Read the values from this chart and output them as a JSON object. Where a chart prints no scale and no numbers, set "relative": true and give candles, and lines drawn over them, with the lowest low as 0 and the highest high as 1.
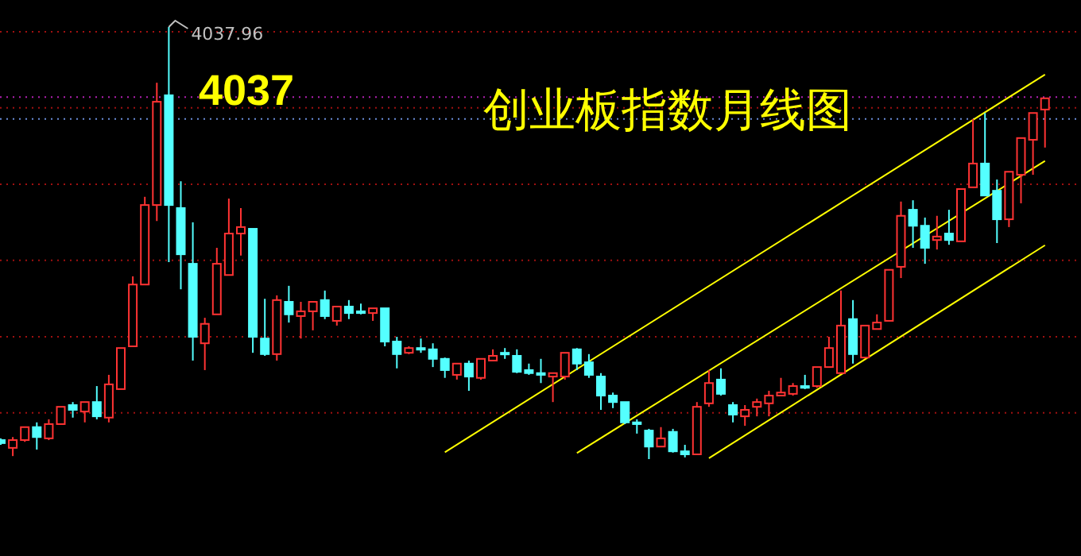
{
  "chart_data": {
    "type": "candlestick",
    "title": "创业板指数月线图",
    "relative": true,
    "categories": [
      null,
      null,
      null,
      null,
      null,
      null,
      null,
      null,
      null,
      null,
      null,
      null,
      null,
      null,
      null,
      null,
      null,
      null,
      null,
      null,
      null,
      null,
      null,
      null,
      null,
      null,
      null,
      null,
      null,
      null,
      null,
      null,
      null,
      null,
      null,
      null,
      null,
      null,
      null,
      null,
      null,
      null,
      null,
      null,
      null,
      null,
      null,
      null,
      null,
      null,
      null,
      null,
      null,
      null,
      null,
      null,
      null,
      null,
      null,
      null,
      null,
      null,
      null,
      null,
      null,
      null,
      null,
      null,
      null,
      null,
      null,
      null,
      null,
      null,
      null,
      null,
      null,
      null,
      null,
      null,
      null,
      null,
      null,
      null,
      null,
      null,
      null,
      null
    ],
    "ohlc": [
      [
        0.044,
        0.048,
        0.033,
        0.037
      ],
      [
        0.026,
        0.051,
        0.007,
        0.044
      ],
      [
        0.044,
        0.074,
        0.04,
        0.074
      ],
      [
        0.074,
        0.085,
        0.022,
        0.051
      ],
      [
        0.048,
        0.092,
        0.044,
        0.081
      ],
      [
        0.081,
        0.121,
        0.081,
        0.121
      ],
      [
        0.125,
        0.132,
        0.096,
        0.114
      ],
      [
        0.11,
        0.132,
        0.085,
        0.132
      ],
      [
        0.132,
        0.169,
        0.092,
        0.099
      ],
      [
        0.096,
        0.195,
        0.085,
        0.173
      ],
      [
        0.162,
        0.257,
        0.162,
        0.257
      ],
      [
        0.261,
        0.423,
        0.261,
        0.404
      ],
      [
        0.404,
        0.607,
        0.404,
        0.588
      ],
      [
        0.588,
        0.871,
        0.551,
        0.827
      ],
      [
        0.842,
        1,
        0.456,
        0.588
      ],
      [
        0.581,
        0.643,
        0.393,
        0.474
      ],
      [
        0.452,
        0.548,
        0.228,
        0.283
      ],
      [
        0.268,
        0.327,
        0.206,
        0.313
      ],
      [
        0.335,
        0.489,
        0.335,
        0.452
      ],
      [
        0.426,
        0.603,
        0.426,
        0.522
      ],
      [
        0.522,
        0.581,
        0.471,
        0.537
      ],
      [
        0.533,
        0.533,
        0.246,
        0.283
      ],
      [
        0.279,
        0.371,
        0.239,
        0.243
      ],
      [
        0.243,
        0.379,
        0.228,
        0.368
      ],
      [
        0.364,
        0.401,
        0.316,
        0.335
      ],
      [
        0.331,
        0.364,
        0.279,
        0.342
      ],
      [
        0.342,
        0.364,
        0.298,
        0.364
      ],
      [
        0.368,
        0.39,
        0.324,
        0.331
      ],
      [
        0.32,
        0.353,
        0.309,
        0.353
      ],
      [
        0.353,
        0.368,
        0.324,
        0.338
      ],
      [
        0.342,
        0.36,
        0.335,
        0.338
      ],
      [
        0.338,
        0.349,
        0.32,
        0.349
      ],
      [
        0.349,
        0.349,
        0.261,
        0.272
      ],
      [
        0.272,
        0.283,
        0.21,
        0.243
      ],
      [
        0.246,
        0.261,
        0.243,
        0.257
      ],
      [
        0.257,
        0.279,
        0.246,
        0.254
      ],
      [
        0.254,
        0.268,
        0.213,
        0.232
      ],
      [
        0.232,
        0.235,
        0.188,
        0.206
      ],
      [
        0.195,
        0.221,
        0.184,
        0.221
      ],
      [
        0.221,
        0.228,
        0.158,
        0.191
      ],
      [
        0.188,
        0.232,
        0.184,
        0.232
      ],
      [
        0.228,
        0.254,
        0.228,
        0.239
      ],
      [
        0.246,
        0.257,
        0.232,
        0.243
      ],
      [
        0.239,
        0.254,
        0.199,
        0.202
      ],
      [
        0.206,
        0.221,
        0.195,
        0.199
      ],
      [
        0.199,
        0.232,
        0.176,
        0.195
      ],
      [
        0.191,
        0.199,
        0.132,
        0.199
      ],
      [
        0.191,
        0.246,
        0.184,
        0.246
      ],
      [
        0.254,
        0.257,
        0.206,
        0.221
      ],
      [
        0.224,
        0.243,
        0.188,
        0.195
      ],
      [
        0.191,
        0.199,
        0.114,
        0.147
      ],
      [
        0.147,
        0.154,
        0.118,
        0.132
      ],
      [
        0.132,
        0.132,
        0.081,
        0.085
      ],
      [
        0.085,
        0.092,
        0.059,
        0.081
      ],
      [
        0.066,
        0.07,
        0,
        0.029
      ],
      [
        0.029,
        0.074,
        0.029,
        0.048
      ],
      [
        0.063,
        0.07,
        0.015,
        0.018
      ],
      [
        0.018,
        0.033,
        0.004,
        0.011
      ],
      [
        0.011,
        0.132,
        0.011,
        0.121
      ],
      [
        0.129,
        0.206,
        0.121,
        0.176
      ],
      [
        0.184,
        0.21,
        0.147,
        0.151
      ],
      [
        0.125,
        0.132,
        0.085,
        0.103
      ],
      [
        0.099,
        0.125,
        0.077,
        0.114
      ],
      [
        0.121,
        0.14,
        0.099,
        0.132
      ],
      [
        0.129,
        0.158,
        0.099,
        0.147
      ],
      [
        0.147,
        0.188,
        0.147,
        0.154
      ],
      [
        0.151,
        0.176,
        0.147,
        0.169
      ],
      [
        0.169,
        0.195,
        0.162,
        0.165
      ],
      [
        0.169,
        0.213,
        0.165,
        0.213
      ],
      [
        0.213,
        0.283,
        0.213,
        0.257
      ],
      [
        0.199,
        0.39,
        0.199,
        0.309
      ],
      [
        0.324,
        0.368,
        0.221,
        0.243
      ],
      [
        0.235,
        0.309,
        0.235,
        0.309
      ],
      [
        0.301,
        0.335,
        0.301,
        0.316
      ],
      [
        0.32,
        0.438,
        0.32,
        0.438
      ],
      [
        0.445,
        0.596,
        0.419,
        0.563
      ],
      [
        0.577,
        0.599,
        0.489,
        0.54
      ],
      [
        0.54,
        0.559,
        0.452,
        0.489
      ],
      [
        0.507,
        0.563,
        0.485,
        0.515
      ],
      [
        0.522,
        0.577,
        0.496,
        0.507
      ],
      [
        0.504,
        0.625,
        0.504,
        0.625
      ],
      [
        0.629,
        0.787,
        0.629,
        0.684
      ],
      [
        0.684,
        0.801,
        0.61,
        0.61
      ],
      [
        0.621,
        0.647,
        0.5,
        0.555
      ],
      [
        0.555,
        0.665,
        0.537,
        0.665
      ],
      [
        0.658,
        0.743,
        0.592,
        0.743
      ],
      [
        0.739,
        0.801,
        0.658,
        0.801
      ],
      [
        0.809,
        0.835,
        0.721,
        0.835
      ]
    ],
    "colors": [
      "#54ffff",
      "#ff3333",
      "#ff3333",
      "#54ffff",
      "#ff3333",
      "#ff3333",
      "#54ffff",
      "#ff3333",
      "#54ffff",
      "#ff3333",
      "#ff3333",
      "#ff3333",
      "#ff3333",
      "#ff3333",
      "#54ffff",
      "#54ffff",
      "#54ffff",
      "#ff3333",
      "#ff3333",
      "#ff3333",
      "#ff3333",
      "#54ffff",
      "#54ffff",
      "#ff3333",
      "#54ffff",
      "#ff3333",
      "#ff3333",
      "#54ffff",
      "#ff3333",
      "#54ffff",
      "#54ffff",
      "#ff3333",
      "#54ffff",
      "#54ffff",
      "#ff3333",
      "#54ffff",
      "#54ffff",
      "#54ffff",
      "#ff3333",
      "#54ffff",
      "#ff3333",
      "#ff3333",
      "#54ffff",
      "#54ffff",
      "#54ffff",
      "#54ffff",
      "#ff3333",
      "#ff3333",
      "#54ffff",
      "#54ffff",
      "#54ffff",
      "#54ffff",
      "#54ffff",
      "#54ffff",
      "#54ffff",
      "#ff3333",
      "#54ffff",
      "#54ffff",
      "#ff3333",
      "#ff3333",
      "#54ffff",
      "#54ffff",
      "#ff3333",
      "#ff3333",
      "#ff3333",
      "#ff3333",
      "#ff3333",
      "#54ffff",
      "#ff3333",
      "#ff3333",
      "#ff3333",
      "#54ffff",
      "#ff3333",
      "#ff3333",
      "#ff3333",
      "#ff3333",
      "#54ffff",
      "#54ffff",
      "#ff3333",
      "#54ffff",
      "#ff3333",
      "#ff3333",
      "#54ffff",
      "#54ffff",
      "#ff3333",
      "#ff3333",
      "#ff3333",
      "#ff3333"
    ],
    "series": [
      {
        "type": "line",
        "color": "#ffff00",
        "values": [
          null,
          null,
          null,
          null,
          null,
          null,
          null,
          null,
          null,
          null,
          null,
          null,
          null,
          null,
          null,
          null,
          null,
          null,
          null,
          null,
          null,
          null,
          null,
          null,
          null,
          null,
          null,
          null,
          null,
          null,
          null,
          null,
          null,
          null,
          null,
          null,
          null,
          0.016,
          null,
          null,
          null,
          null,
          null,
          null,
          null,
          null,
          null,
          null,
          null,
          null,
          null,
          null,
          null,
          null,
          null,
          null,
          null,
          null,
          null,
          null,
          null,
          null,
          null,
          null,
          null,
          null,
          null,
          null,
          null,
          null,
          null,
          null,
          null,
          null,
          null,
          null,
          null,
          null,
          null,
          null,
          null,
          null,
          null,
          null,
          null,
          null,
          null,
          0.89
        ]
      },
      {
        "type": "line",
        "color": "#ffff00",
        "values": [
          null,
          null,
          null,
          null,
          null,
          null,
          null,
          null,
          null,
          null,
          null,
          null,
          null,
          null,
          null,
          null,
          null,
          null,
          null,
          null,
          null,
          null,
          null,
          null,
          null,
          null,
          null,
          null,
          null,
          null,
          null,
          null,
          null,
          null,
          null,
          null,
          null,
          null,
          null,
          null,
          null,
          null,
          null,
          null,
          null,
          null,
          null,
          null,
          0.014,
          null,
          null,
          null,
          null,
          null,
          null,
          null,
          null,
          null,
          null,
          null,
          null,
          null,
          null,
          null,
          null,
          null,
          null,
          null,
          null,
          null,
          null,
          null,
          null,
          null,
          null,
          null,
          null,
          null,
          null,
          null,
          null,
          null,
          null,
          null,
          null,
          null,
          null,
          0.69
        ]
      },
      {
        "type": "line",
        "color": "#ffff00",
        "values": [
          null,
          null,
          null,
          null,
          null,
          null,
          null,
          null,
          null,
          null,
          null,
          null,
          null,
          null,
          null,
          null,
          null,
          null,
          null,
          null,
          null,
          null,
          null,
          null,
          null,
          null,
          null,
          null,
          null,
          null,
          null,
          null,
          null,
          null,
          null,
          null,
          null,
          null,
          null,
          null,
          null,
          null,
          null,
          null,
          null,
          null,
          null,
          null,
          null,
          null,
          null,
          null,
          null,
          null,
          null,
          null,
          null,
          null,
          null,
          0.002,
          null,
          null,
          null,
          null,
          null,
          null,
          null,
          null,
          null,
          null,
          null,
          null,
          null,
          null,
          null,
          null,
          null,
          null,
          null,
          null,
          null,
          null,
          null,
          null,
          null,
          null,
          null,
          0.495
        ]
      }
    ],
    "ref_lines": [
      {
        "axis": "y",
        "value": 0.989,
        "color": "#a01010",
        "line_style": "dotted"
      },
      {
        "axis": "y",
        "value": 0.813,
        "color": "#a01010",
        "line_style": "dotted"
      },
      {
        "axis": "y",
        "value": 0.636,
        "color": "#a01010",
        "line_style": "dotted"
      },
      {
        "axis": "y",
        "value": 0.46,
        "color": "#a01010",
        "line_style": "dotted"
      },
      {
        "axis": "y",
        "value": 0.283,
        "color": "#a01010",
        "line_style": "dotted"
      },
      {
        "axis": "y",
        "value": 0.107,
        "color": "#a01010",
        "line_style": "dotted"
      },
      {
        "axis": "y",
        "value": 0.838,
        "color": "#b020b0",
        "line_style": "dotted"
      },
      {
        "axis": "y",
        "value": 0.787,
        "color": "#6a8cd8",
        "line_style": "dotted"
      }
    ],
    "annotations": [
      "4037.96",
      "4037"
    ]
  }
}
